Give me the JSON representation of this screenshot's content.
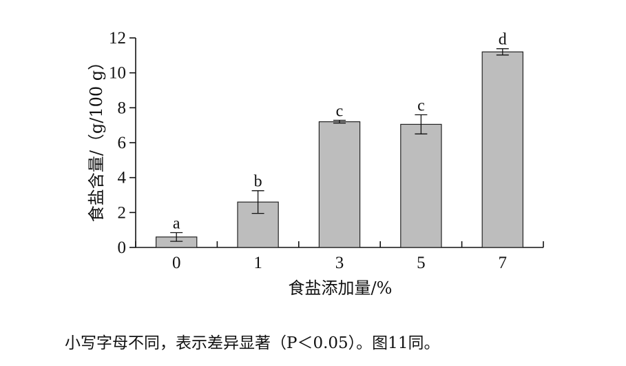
{
  "chart_data": {
    "type": "bar",
    "categories": [
      "0",
      "1",
      "3",
      "5",
      "7"
    ],
    "values": [
      0.6,
      2.6,
      7.2,
      7.05,
      11.2
    ],
    "error": [
      0.25,
      0.65,
      0.08,
      0.55,
      0.18
    ],
    "letters": [
      "a",
      "b",
      "c",
      "c",
      "d"
    ],
    "xlabel": "食盐添加量/%",
    "ylabel": "食盐含量/（g/100 g）",
    "ylim": [
      0,
      12
    ],
    "yticks": [
      0,
      2,
      4,
      6,
      8,
      10,
      12
    ],
    "bar_color": "#bdbdbd",
    "grid": false,
    "title": ""
  },
  "caption": "小写字母不同，表示差异显著（P＜0.05）。图11同。"
}
